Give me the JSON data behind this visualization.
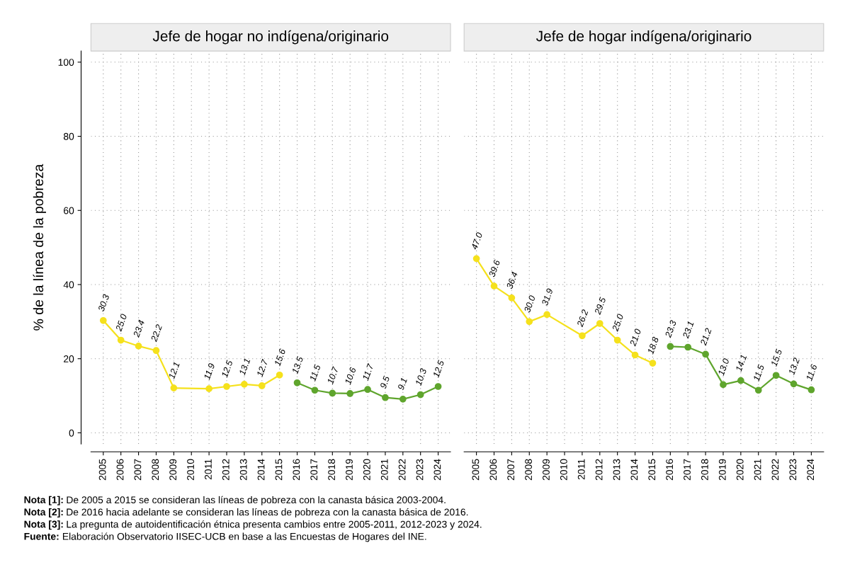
{
  "chart_data": [
    {
      "type": "line",
      "title": "Jefe de hogar no indígena/originario",
      "ylabel": "% de la línea de la pobreza",
      "categories": [
        "2005",
        "2006",
        "2007",
        "2008",
        "2009",
        "2010",
        "2011",
        "2012",
        "2013",
        "2014",
        "2015",
        "2016",
        "2017",
        "2018",
        "2019",
        "2020",
        "2021",
        "2022",
        "2023",
        "2024"
      ],
      "series": [
        {
          "color": "#f5e11c",
          "values": [
            30.3,
            25.0,
            23.4,
            22.2,
            12.1,
            null,
            11.9,
            12.5,
            13.1,
            12.7,
            15.6,
            null,
            null,
            null,
            null,
            null,
            null,
            null,
            null,
            null
          ],
          "value_labels": [
            "30.3",
            "25.0",
            "23.4",
            "22.2",
            "12.1",
            null,
            "11.9",
            "12.5",
            "13.1",
            "12.7",
            "15.6",
            null,
            null,
            null,
            null,
            null,
            null,
            null,
            null,
            null
          ]
        },
        {
          "color": "#5fa52d",
          "values": [
            null,
            null,
            null,
            null,
            null,
            null,
            null,
            null,
            null,
            null,
            null,
            13.5,
            11.5,
            10.7,
            10.6,
            11.7,
            9.5,
            9.1,
            10.3,
            12.5
          ],
          "value_labels": [
            null,
            null,
            null,
            null,
            null,
            null,
            null,
            null,
            null,
            null,
            null,
            "13.5",
            "11.5",
            "10.7",
            "10.6",
            "11.7",
            "9.5",
            "9.1",
            "10.3",
            "12.5"
          ]
        }
      ],
      "ylim": [
        -3,
        103
      ],
      "yticks": [
        0,
        20,
        40,
        60,
        80,
        100
      ],
      "grid": true,
      "marker": "circle",
      "line_style": "solid",
      "legend": false,
      "annotations": [
        "Nota [1]: De 2005 a 2015 se consideran las líneas de pobreza con la canasta básica 2003-2004.",
        "Nota [2]: De 2016 hacia adelante se consideran las líneas de pobreza con la canasta básica de 2016.",
        "Nota [3]: La pregunta de autoidentificación étnica presenta cambios entre 2005-2011, 2012-2023 y 2024.",
        "Fuente: Elaboración Observatorio IISEC-UCB en base a las Encuestas de Hogares del INE."
      ]
    },
    {
      "type": "line",
      "title": "Jefe de hogar indígena/originario",
      "categories": [
        "2005",
        "2006",
        "2007",
        "2008",
        "2009",
        "2010",
        "2011",
        "2012",
        "2013",
        "2014",
        "2015",
        "2016",
        "2017",
        "2018",
        "2019",
        "2020",
        "2021",
        "2022",
        "2023",
        "2024"
      ],
      "series": [
        {
          "color": "#f5e11c",
          "values": [
            47.0,
            39.6,
            36.4,
            30.0,
            31.9,
            null,
            26.2,
            29.5,
            25.0,
            21.0,
            18.8,
            null,
            null,
            null,
            null,
            null,
            null,
            null,
            null,
            null
          ],
          "value_labels": [
            "47.0",
            "39.6",
            "36.4",
            "30.0",
            "31.9",
            null,
            "26.2",
            "29.5",
            "25.0",
            "21.0",
            "18.8",
            null,
            null,
            null,
            null,
            null,
            null,
            null,
            null,
            null
          ]
        },
        {
          "color": "#5fa52d",
          "values": [
            null,
            null,
            null,
            null,
            null,
            null,
            null,
            null,
            null,
            null,
            null,
            23.3,
            23.1,
            21.2,
            13.0,
            14.1,
            11.5,
            15.5,
            13.2,
            11.6
          ],
          "value_labels": [
            null,
            null,
            null,
            null,
            null,
            null,
            null,
            null,
            null,
            null,
            null,
            "23.3",
            "23.1",
            "21.2",
            "13.0",
            "14.1",
            "11.5",
            "15.5",
            "13.2",
            "11.6"
          ]
        }
      ],
      "ylim": [
        -3,
        103
      ],
      "yticks": [
        0,
        20,
        40,
        60,
        80,
        100
      ],
      "grid": true,
      "marker": "circle",
      "line_style": "solid",
      "legend": false,
      "tick_labels": "x"
    }
  ]
}
